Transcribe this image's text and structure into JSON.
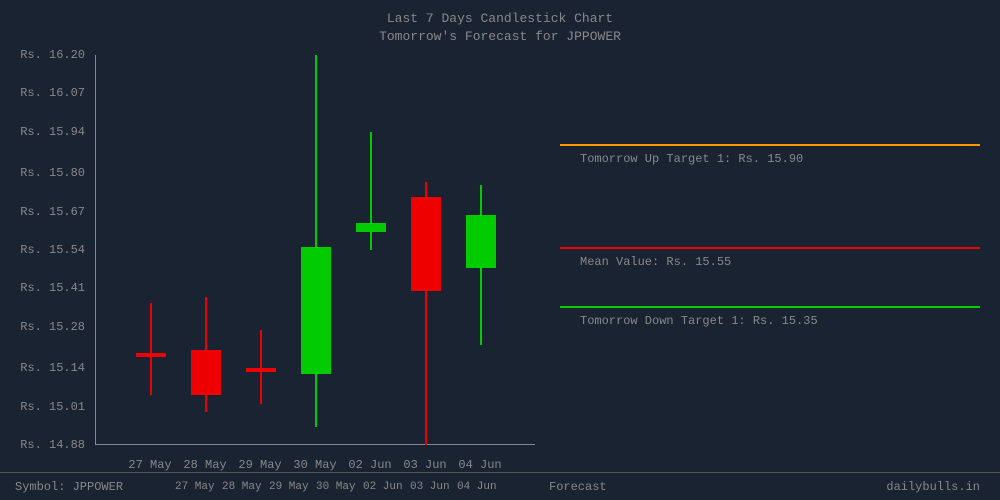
{
  "title1": "Last 7 Days Candlestick Chart",
  "title2": "Tomorrow's Forecast for JPPOWER",
  "chart": {
    "type": "candlestick",
    "background_color": "#1a2332",
    "axis_color": "#888888",
    "up_color": "#00cc00",
    "down_color": "#ee0000",
    "ymin": 14.88,
    "ymax": 16.2,
    "yticks": [
      16.2,
      16.07,
      15.94,
      15.8,
      15.67,
      15.54,
      15.41,
      15.28,
      15.14,
      15.01,
      14.88
    ],
    "ytick_prefix": "Rs. ",
    "xticks": [
      "27 May",
      "28 May",
      "29 May",
      "30 May",
      "02 Jun",
      "03 Jun",
      "04 Jun"
    ],
    "candles": [
      {
        "open": 15.19,
        "close": 15.19,
        "high": 15.36,
        "low": 15.05,
        "dir": "down"
      },
      {
        "open": 15.2,
        "close": 15.05,
        "high": 15.38,
        "low": 14.99,
        "dir": "down"
      },
      {
        "open": 15.14,
        "close": 15.14,
        "high": 15.27,
        "low": 15.02,
        "dir": "down"
      },
      {
        "open": 15.12,
        "close": 15.55,
        "high": 16.2,
        "low": 14.94,
        "dir": "up"
      },
      {
        "open": 15.6,
        "close": 15.63,
        "high": 15.94,
        "low": 15.54,
        "dir": "up"
      },
      {
        "open": 15.72,
        "close": 15.4,
        "high": 15.77,
        "low": 14.88,
        "dir": "down"
      },
      {
        "open": 15.48,
        "close": 15.66,
        "high": 15.76,
        "low": 15.22,
        "dir": "up"
      }
    ]
  },
  "targets": {
    "up": {
      "label": "Tomorrow Up Target 1: Rs. 15.90",
      "value": 15.9,
      "color": "#ff9900"
    },
    "mean": {
      "label": "Mean Value: Rs. 15.55",
      "value": 15.55,
      "color": "#ee0000"
    },
    "down": {
      "label": "Tomorrow Down Target 1: Rs. 15.35",
      "value": 15.35,
      "color": "#00cc00"
    }
  },
  "footer": {
    "symbol_prefix": "Symbol: ",
    "symbol": "JPPOWER",
    "forecast_label": "Forecast",
    "brand": "dailybulls.in"
  }
}
